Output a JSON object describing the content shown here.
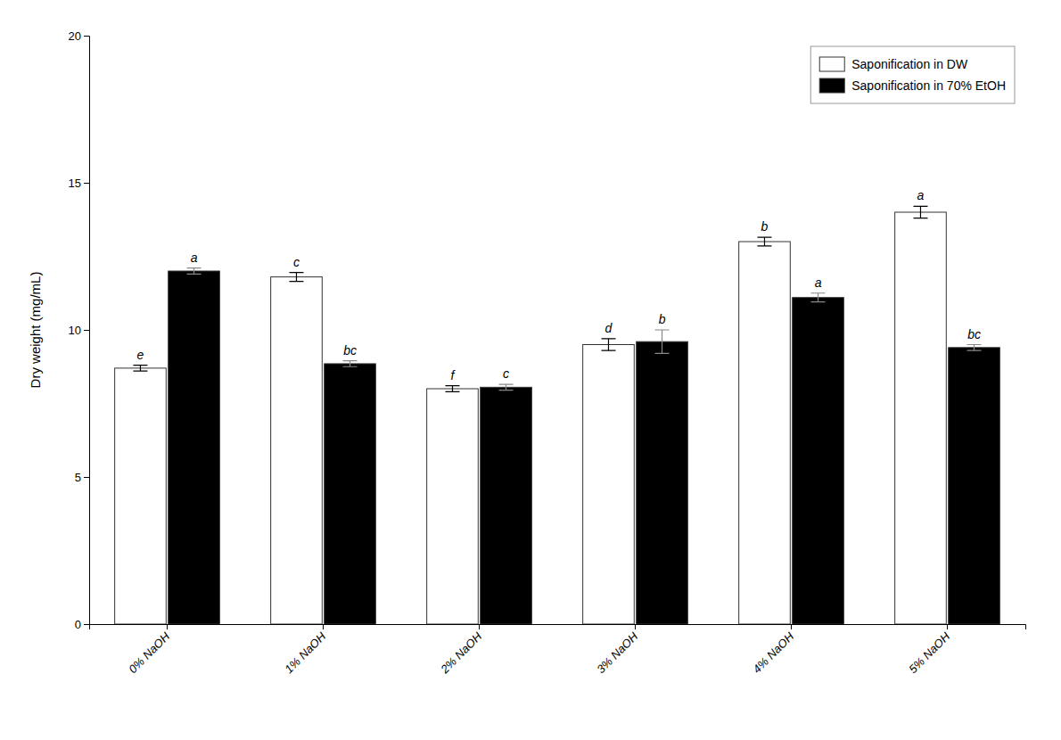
{
  "chart_data": {
    "type": "bar",
    "categories": [
      "0% NaOH",
      "1% NaOH",
      "2% NaOH",
      "3% NaOH",
      "4% NaOH",
      "5% NaOH"
    ],
    "series": [
      {
        "name": "Saponification in DW",
        "color": "#ffffff",
        "values": [
          8.7,
          11.8,
          8.0,
          9.5,
          13.0,
          14.0
        ],
        "errors": [
          0.1,
          0.15,
          0.1,
          0.2,
          0.15,
          0.2
        ],
        "annotations": [
          "e",
          "c",
          "f",
          "d",
          "b",
          "a"
        ]
      },
      {
        "name": "Saponification in 70% EtOH",
        "color": "#000000",
        "values": [
          12.0,
          8.85,
          8.05,
          9.6,
          11.1,
          9.4
        ],
        "errors": [
          0.1,
          0.1,
          0.1,
          0.4,
          0.15,
          0.1
        ],
        "annotations": [
          "a",
          "bc",
          "c",
          "b",
          "a",
          "bc"
        ]
      }
    ],
    "ylabel": "Dry weight (mg/mL)",
    "ylim": [
      0,
      20
    ],
    "yticks": [
      0,
      5,
      10,
      15,
      20
    ],
    "grid": false,
    "legend": "upper right"
  }
}
